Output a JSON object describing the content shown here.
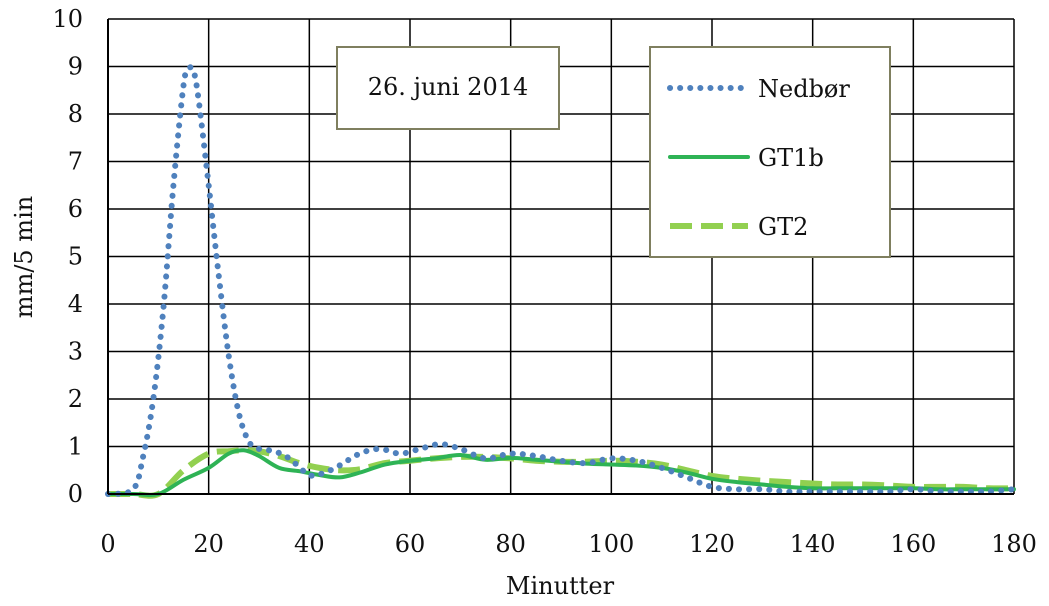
{
  "chart_data": {
    "type": "line",
    "title": "",
    "annotation": "26. juni 2014",
    "xlabel": "Minutter",
    "ylabel": "mm/5 min",
    "xlim": [
      0,
      180
    ],
    "ylim": [
      0,
      10
    ],
    "x_ticks": [
      "0",
      "20",
      "40",
      "60",
      "80",
      "100",
      "120",
      "140",
      "160",
      "180"
    ],
    "y_ticks": [
      "0",
      "1",
      "2",
      "3",
      "4",
      "5",
      "6",
      "7",
      "8",
      "9",
      "10"
    ],
    "grid": true,
    "legend_position": "top-right",
    "series": [
      {
        "name": "Nedbør",
        "color": "#4f81bd",
        "style": "dotted",
        "x": [
          0,
          5,
          7,
          9,
          11,
          13,
          15,
          16,
          17,
          18,
          20,
          22,
          24,
          26,
          28,
          30,
          33,
          36,
          40,
          43,
          46,
          50,
          54,
          58,
          62,
          66,
          70,
          75,
          80,
          85,
          90,
          95,
          100,
          105,
          110,
          115,
          120,
          125,
          130,
          135,
          140,
          145,
          150,
          155,
          160,
          165,
          170,
          175,
          180
        ],
        "y": [
          0,
          0.1,
          0.8,
          2.0,
          3.9,
          6.5,
          8.6,
          8.95,
          8.9,
          8.3,
          6.5,
          4.6,
          2.9,
          1.7,
          1.1,
          0.95,
          0.9,
          0.75,
          0.4,
          0.45,
          0.6,
          0.85,
          0.95,
          0.85,
          0.95,
          1.05,
          0.95,
          0.75,
          0.85,
          0.8,
          0.7,
          0.65,
          0.75,
          0.7,
          0.55,
          0.35,
          0.15,
          0.1,
          0.1,
          0.05,
          0.05,
          0.05,
          0.05,
          0.05,
          0.1,
          0.05,
          0.05,
          0.05,
          0.1
        ]
      },
      {
        "name": "GT1b",
        "color": "#2eb355",
        "style": "solid",
        "x": [
          0,
          5,
          10,
          15,
          20,
          24,
          27,
          30,
          34,
          38,
          42,
          46,
          50,
          55,
          60,
          65,
          70,
          75,
          80,
          85,
          90,
          95,
          100,
          105,
          110,
          115,
          120,
          125,
          130,
          135,
          140,
          145,
          150,
          155,
          160,
          165,
          170,
          175,
          180
        ],
        "y": [
          0,
          0,
          0,
          0.3,
          0.55,
          0.85,
          0.92,
          0.8,
          0.55,
          0.48,
          0.4,
          0.35,
          0.45,
          0.62,
          0.7,
          0.75,
          0.82,
          0.72,
          0.76,
          0.72,
          0.68,
          0.64,
          0.62,
          0.6,
          0.55,
          0.45,
          0.32,
          0.25,
          0.2,
          0.15,
          0.12,
          0.12,
          0.12,
          0.12,
          0.12,
          0.1,
          0.1,
          0.1,
          0.1
        ]
      },
      {
        "name": "GT2",
        "color": "#92d050",
        "style": "dashed",
        "x": [
          0,
          5,
          10,
          15,
          20,
          24,
          27,
          30,
          34,
          38,
          42,
          46,
          50,
          55,
          60,
          65,
          70,
          75,
          80,
          85,
          90,
          95,
          100,
          105,
          110,
          115,
          120,
          125,
          130,
          135,
          140,
          145,
          150,
          155,
          160,
          165,
          170,
          175,
          180
        ],
        "y": [
          0,
          0,
          0,
          0.5,
          0.85,
          0.9,
          0.92,
          0.9,
          0.8,
          0.65,
          0.55,
          0.5,
          0.52,
          0.65,
          0.7,
          0.75,
          0.78,
          0.78,
          0.75,
          0.7,
          0.68,
          0.68,
          0.7,
          0.68,
          0.62,
          0.5,
          0.38,
          0.32,
          0.28,
          0.25,
          0.22,
          0.2,
          0.2,
          0.18,
          0.15,
          0.15,
          0.15,
          0.12,
          0.12
        ]
      }
    ]
  }
}
